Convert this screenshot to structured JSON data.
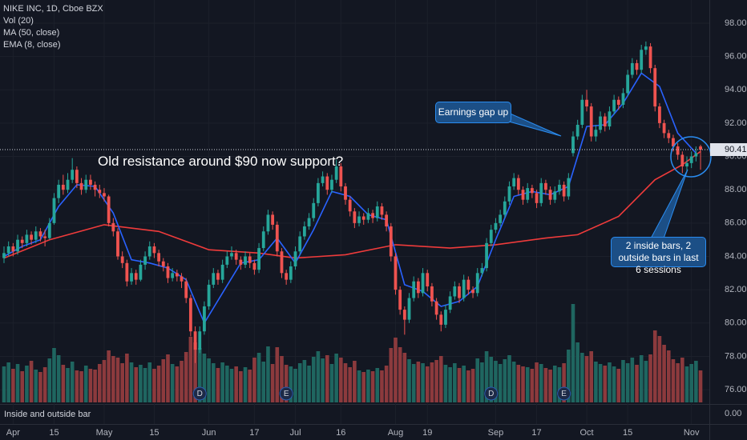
{
  "chart_data": {
    "type": "candlestick",
    "title": "NIKE INC, 1D, Cboe BZX",
    "indicators": [
      "Vol (20)",
      "MA (50, close)",
      "EMA (8, close)"
    ],
    "pane_label": "Inside and outside bar",
    "pane_tick": {
      "value": 0,
      "label": "0.00"
    },
    "last_price": {
      "value": 90.41,
      "label": "90.41"
    },
    "ylim": [
      75.14,
      99.39
    ],
    "yticks": [
      {
        "value": 98,
        "label": "98.00"
      },
      {
        "value": 96,
        "label": "96.00"
      },
      {
        "value": 94,
        "label": "94.00"
      },
      {
        "value": 92,
        "label": "92.00"
      },
      {
        "value": 90,
        "label": "90.00"
      },
      {
        "value": 88,
        "label": "88.00"
      },
      {
        "value": 86,
        "label": "86.00"
      },
      {
        "value": 84,
        "label": "84.00"
      },
      {
        "value": 82,
        "label": "82.00"
      },
      {
        "value": 80,
        "label": "80.00"
      },
      {
        "value": 78,
        "label": "78.00"
      },
      {
        "value": 76,
        "label": "76.00"
      }
    ],
    "xticks": [
      {
        "value": 2,
        "label": "Apr"
      },
      {
        "value": 11,
        "label": "15"
      },
      {
        "value": 22,
        "label": "May"
      },
      {
        "value": 33,
        "label": "15"
      },
      {
        "value": 45,
        "label": "Jun"
      },
      {
        "value": 55,
        "label": "17"
      },
      {
        "value": 64,
        "label": "Jul"
      },
      {
        "value": 74,
        "label": "16"
      },
      {
        "value": 86,
        "label": "Aug"
      },
      {
        "value": 93,
        "label": "19"
      },
      {
        "value": 108,
        "label": "Sep"
      },
      {
        "value": 117,
        "label": "17"
      },
      {
        "value": 128,
        "label": "Oct"
      },
      {
        "value": 137,
        "label": "15"
      },
      {
        "value": 151,
        "label": "Nov"
      }
    ],
    "up_color": "#26a69a",
    "down_color": "#ef5350",
    "vol_up_color": "#1f6660",
    "vol_down_color": "#8c3a3d",
    "candles": [
      [
        83.9,
        84.6,
        83.6,
        84.2
      ],
      [
        84.2,
        84.9,
        84.0,
        84.6
      ],
      [
        84.6,
        84.8,
        84.0,
        84.3
      ],
      [
        84.3,
        85.3,
        84.1,
        85.0
      ],
      [
        85.0,
        85.2,
        84.5,
        84.8
      ],
      [
        84.8,
        85.6,
        84.6,
        85.3
      ],
      [
        85.3,
        85.5,
        84.7,
        85.0
      ],
      [
        85.0,
        85.8,
        84.8,
        85.5
      ],
      [
        85.5,
        85.7,
        84.9,
        85.2
      ],
      [
        85.2,
        85.6,
        84.6,
        85.1
      ],
      [
        85.1,
        86.3,
        85.0,
        86.0
      ],
      [
        86.0,
        87.8,
        85.9,
        87.5
      ],
      [
        87.5,
        88.6,
        87.2,
        88.3
      ],
      [
        88.3,
        88.9,
        87.7,
        88.0
      ],
      [
        88.0,
        89.0,
        87.8,
        88.6
      ],
      [
        88.6,
        89.9,
        88.4,
        89.2
      ],
      [
        89.2,
        89.4,
        88.1,
        88.4
      ],
      [
        88.4,
        88.7,
        87.7,
        88.0
      ],
      [
        88.0,
        88.9,
        87.8,
        88.6
      ],
      [
        88.6,
        88.9,
        88.0,
        88.3
      ],
      [
        88.3,
        88.5,
        87.6,
        88.0
      ],
      [
        88.0,
        88.3,
        87.5,
        87.8
      ],
      [
        87.8,
        88.1,
        87.3,
        87.6
      ],
      [
        87.6,
        87.7,
        85.8,
        86.0
      ],
      [
        86.0,
        86.3,
        85.2,
        85.5
      ],
      [
        85.5,
        85.7,
        83.8,
        84.0
      ],
      [
        84.0,
        84.3,
        83.3,
        83.6
      ],
      [
        83.6,
        83.8,
        82.2,
        82.5
      ],
      [
        82.5,
        83.3,
        82.3,
        83.0
      ],
      [
        83.0,
        83.2,
        82.3,
        82.6
      ],
      [
        82.6,
        83.8,
        82.5,
        83.5
      ],
      [
        83.5,
        84.3,
        83.2,
        84.0
      ],
      [
        84.0,
        84.9,
        83.8,
        84.6
      ],
      [
        84.6,
        84.8,
        83.9,
        84.2
      ],
      [
        84.2,
        84.4,
        83.4,
        83.7
      ],
      [
        83.7,
        83.9,
        83.1,
        83.4
      ],
      [
        83.4,
        83.6,
        82.4,
        82.7
      ],
      [
        82.7,
        83.3,
        82.5,
        83.0
      ],
      [
        83.0,
        83.2,
        82.5,
        82.8
      ],
      [
        82.8,
        83.0,
        82.1,
        82.5
      ],
      [
        82.5,
        82.7,
        81.2,
        81.5
      ],
      [
        81.5,
        81.7,
        79.2,
        79.5
      ],
      [
        79.5,
        79.8,
        77.6,
        78.4
      ],
      [
        78.4,
        79.8,
        78.2,
        79.5
      ],
      [
        79.5,
        81.3,
        79.3,
        81.0
      ],
      [
        81.0,
        82.6,
        80.8,
        82.3
      ],
      [
        82.3,
        83.3,
        82.1,
        83.0
      ],
      [
        83.0,
        83.2,
        82.3,
        82.6
      ],
      [
        82.6,
        83.8,
        82.4,
        83.5
      ],
      [
        83.5,
        84.3,
        83.3,
        84.0
      ],
      [
        84.0,
        84.6,
        83.8,
        84.2
      ],
      [
        84.2,
        84.4,
        83.5,
        83.8
      ],
      [
        83.8,
        84.0,
        83.2,
        83.5
      ],
      [
        83.5,
        84.3,
        83.3,
        84.0
      ],
      [
        84.0,
        84.2,
        83.3,
        83.6
      ],
      [
        83.6,
        83.8,
        82.9,
        83.2
      ],
      [
        83.2,
        84.8,
        83.0,
        84.5
      ],
      [
        84.5,
        85.8,
        84.3,
        85.5
      ],
      [
        85.5,
        86.8,
        85.3,
        86.5
      ],
      [
        86.5,
        86.7,
        85.6,
        85.9
      ],
      [
        85.9,
        86.1,
        84.0,
        84.3
      ],
      [
        84.3,
        84.5,
        82.7,
        83.0
      ],
      [
        83.0,
        83.2,
        82.3,
        82.6
      ],
      [
        82.6,
        83.7,
        82.4,
        83.4
      ],
      [
        83.4,
        84.6,
        83.2,
        84.3
      ],
      [
        84.3,
        85.5,
        84.1,
        85.2
      ],
      [
        85.2,
        86.1,
        85.0,
        85.8
      ],
      [
        85.8,
        86.6,
        85.6,
        86.3
      ],
      [
        86.3,
        87.5,
        86.1,
        87.2
      ],
      [
        87.2,
        88.7,
        87.0,
        88.4
      ],
      [
        88.4,
        89.1,
        88.2,
        88.8
      ],
      [
        88.8,
        89.0,
        87.7,
        88.0
      ],
      [
        88.0,
        88.9,
        87.8,
        88.6
      ],
      [
        88.6,
        89.8,
        88.4,
        89.4
      ],
      [
        89.4,
        89.6,
        87.9,
        88.2
      ],
      [
        88.2,
        88.4,
        87.1,
        87.4
      ],
      [
        87.4,
        87.6,
        86.4,
        86.7
      ],
      [
        86.7,
        86.9,
        85.7,
        86.0
      ],
      [
        86.0,
        86.7,
        85.8,
        86.4
      ],
      [
        86.4,
        86.6,
        85.9,
        86.2
      ],
      [
        86.2,
        86.9,
        86.0,
        86.6
      ],
      [
        86.6,
        86.8,
        86.0,
        86.3
      ],
      [
        86.3,
        87.3,
        86.1,
        87.0
      ],
      [
        87.0,
        87.2,
        86.2,
        86.5
      ],
      [
        86.5,
        86.7,
        85.5,
        85.8
      ],
      [
        85.8,
        86.0,
        83.7,
        84.0
      ],
      [
        84.0,
        84.2,
        81.7,
        82.0
      ],
      [
        82.0,
        82.2,
        80.5,
        80.8
      ],
      [
        80.8,
        81.0,
        79.3,
        80.2
      ],
      [
        80.2,
        81.8,
        80.0,
        81.5
      ],
      [
        81.5,
        82.8,
        81.3,
        82.5
      ],
      [
        82.5,
        82.7,
        81.5,
        81.8
      ],
      [
        81.8,
        83.3,
        81.6,
        83.0
      ],
      [
        83.0,
        83.2,
        81.9,
        82.2
      ],
      [
        82.2,
        82.4,
        81.0,
        81.3
      ],
      [
        81.3,
        81.5,
        80.2,
        80.5
      ],
      [
        80.5,
        80.7,
        79.5,
        79.9
      ],
      [
        79.9,
        81.1,
        79.7,
        80.8
      ],
      [
        80.8,
        81.9,
        80.6,
        81.6
      ],
      [
        81.6,
        82.5,
        81.4,
        82.2
      ],
      [
        82.2,
        82.4,
        81.2,
        81.5
      ],
      [
        81.5,
        82.9,
        81.3,
        82.6
      ],
      [
        82.6,
        82.8,
        81.7,
        82.0
      ],
      [
        82.0,
        82.2,
        81.5,
        81.8
      ],
      [
        81.8,
        83.3,
        81.6,
        83.0
      ],
      [
        83.0,
        83.6,
        82.8,
        83.3
      ],
      [
        83.3,
        85.1,
        83.1,
        84.8
      ],
      [
        84.8,
        85.9,
        84.6,
        85.6
      ],
      [
        85.6,
        86.3,
        85.4,
        86.0
      ],
      [
        86.0,
        86.8,
        85.8,
        86.5
      ],
      [
        86.5,
        87.6,
        86.3,
        87.3
      ],
      [
        87.3,
        88.5,
        87.1,
        88.2
      ],
      [
        88.2,
        89.0,
        88.0,
        88.7
      ],
      [
        88.7,
        88.9,
        87.7,
        88.0
      ],
      [
        88.0,
        88.2,
        87.1,
        87.4
      ],
      [
        87.4,
        88.4,
        87.2,
        88.1
      ],
      [
        88.1,
        88.3,
        87.5,
        87.8
      ],
      [
        87.8,
        88.0,
        86.9,
        87.2
      ],
      [
        87.2,
        88.7,
        87.0,
        88.4
      ],
      [
        88.4,
        88.6,
        87.7,
        88.0
      ],
      [
        88.0,
        88.2,
        87.1,
        87.4
      ],
      [
        87.4,
        88.2,
        87.2,
        87.9
      ],
      [
        87.9,
        88.6,
        87.7,
        88.3
      ],
      [
        88.3,
        88.5,
        87.3,
        87.6
      ],
      [
        87.6,
        89.0,
        87.4,
        88.7
      ],
      [
        90.2,
        91.5,
        90.0,
        91.2
      ],
      [
        91.2,
        92.2,
        91.0,
        91.9
      ],
      [
        91.9,
        93.7,
        91.7,
        93.4
      ],
      [
        93.4,
        94.0,
        92.7,
        93.0
      ],
      [
        93.0,
        93.2,
        90.9,
        91.2
      ],
      [
        91.2,
        91.9,
        90.9,
        91.6
      ],
      [
        91.6,
        92.7,
        91.4,
        92.4
      ],
      [
        92.4,
        92.6,
        91.5,
        91.8
      ],
      [
        91.8,
        93.0,
        91.6,
        92.7
      ],
      [
        92.7,
        93.7,
        92.5,
        93.4
      ],
      [
        93.4,
        93.6,
        92.8,
        93.1
      ],
      [
        93.1,
        94.1,
        92.9,
        93.8
      ],
      [
        93.8,
        95.2,
        93.6,
        94.9
      ],
      [
        94.9,
        95.9,
        94.7,
        95.6
      ],
      [
        95.6,
        95.8,
        94.9,
        95.2
      ],
      [
        95.2,
        96.7,
        95.0,
        96.4
      ],
      [
        96.4,
        96.9,
        96.1,
        96.6
      ],
      [
        96.6,
        96.8,
        95.0,
        95.3
      ],
      [
        95.3,
        95.5,
        92.7,
        93.0
      ],
      [
        93.0,
        93.2,
        91.7,
        92.0
      ],
      [
        92.0,
        92.2,
        91.1,
        91.4
      ],
      [
        91.4,
        91.6,
        90.8,
        91.1
      ],
      [
        91.1,
        91.3,
        90.3,
        90.6
      ],
      [
        90.6,
        90.8,
        89.8,
        90.1
      ],
      [
        90.1,
        90.3,
        89.0,
        89.4
      ],
      [
        89.4,
        90.0,
        89.1,
        89.6
      ],
      [
        89.6,
        90.3,
        89.3,
        90.0
      ],
      [
        90.0,
        90.6,
        89.7,
        90.2
      ],
      [
        90.6,
        90.7,
        89.2,
        90.41
      ]
    ],
    "volume": [
      4.5,
      5.0,
      4.2,
      4.8,
      3.9,
      4.6,
      5.2,
      4.1,
      3.8,
      4.4,
      5.5,
      6.8,
      5.9,
      4.7,
      4.3,
      5.1,
      4.0,
      3.9,
      4.6,
      4.2,
      4.1,
      4.8,
      5.3,
      6.5,
      5.8,
      5.6,
      4.9,
      6.1,
      5.0,
      4.4,
      4.7,
      4.3,
      5.0,
      4.2,
      4.6,
      5.4,
      6.0,
      4.8,
      4.5,
      5.2,
      6.3,
      8.2,
      7.5,
      6.8,
      6.1,
      5.5,
      4.9,
      4.3,
      5.0,
      4.6,
      4.2,
      4.5,
      3.9,
      4.4,
      4.1,
      5.6,
      6.2,
      5.1,
      7.0,
      4.8,
      6.9,
      5.8,
      4.7,
      4.5,
      4.2,
      4.9,
      5.3,
      4.6,
      5.7,
      6.4,
      5.5,
      5.9,
      4.8,
      6.1,
      5.6,
      4.9,
      4.4,
      5.2,
      4.0,
      3.8,
      4.1,
      3.9,
      4.3,
      4.0,
      4.6,
      6.8,
      8.1,
      6.9,
      6.2,
      5.4,
      4.8,
      5.1,
      4.9,
      4.5,
      5.0,
      5.3,
      5.8,
      4.7,
      4.4,
      4.9,
      4.3,
      4.6,
      4.0,
      4.2,
      5.5,
      5.0,
      6.4,
      5.7,
      5.2,
      4.8,
      5.4,
      5.9,
      5.1,
      4.7,
      4.5,
      4.4,
      4.2,
      5.0,
      4.8,
      4.3,
      4.1,
      4.6,
      4.4,
      4.9,
      6.6,
      12.3,
      7.5,
      6.2,
      5.8,
      6.4,
      5.1,
      4.8,
      4.6,
      5.0,
      4.5,
      4.2,
      5.3,
      4.9,
      5.6,
      4.7,
      5.9,
      5.2,
      6.0,
      9.0,
      8.3,
      7.2,
      6.5,
      5.4,
      4.9,
      5.6,
      4.5,
      4.8,
      5.2,
      4.0
    ],
    "ma50": {
      "name": "MA (50, close)",
      "color": "#ef3b3b",
      "x": [
        0,
        10,
        22,
        34,
        45,
        56,
        64,
        75,
        86,
        98,
        108,
        119,
        126,
        135,
        143,
        149,
        153
      ],
      "values": [
        83.9,
        85.0,
        85.9,
        85.5,
        84.4,
        84.2,
        83.9,
        84.1,
        84.7,
        84.5,
        84.7,
        85.1,
        85.3,
        86.4,
        88.6,
        89.5,
        90.3
      ]
    },
    "ema8": {
      "name": "EMA (8, close)",
      "color": "#2962ff",
      "x": [
        0,
        4,
        8,
        12,
        16,
        20,
        24,
        28,
        32,
        36,
        40,
        44,
        48,
        52,
        56,
        60,
        64,
        68,
        72,
        76,
        80,
        84,
        88,
        92,
        96,
        100,
        104,
        108,
        112,
        116,
        120,
        124,
        128,
        132,
        136,
        140,
        144,
        148,
        152
      ],
      "values": [
        84.0,
        84.6,
        85.0,
        87.0,
        88.3,
        88.2,
        86.6,
        83.8,
        83.6,
        83.3,
        82.6,
        80.0,
        81.8,
        83.6,
        83.8,
        85.1,
        83.6,
        85.6,
        87.9,
        87.6,
        86.5,
        86.2,
        82.3,
        81.9,
        81.0,
        81.3,
        82.2,
        85.0,
        87.6,
        87.9,
        87.7,
        88.2,
        91.8,
        91.9,
        93.2,
        95.0,
        94.2,
        91.4,
        90.2
      ]
    },
    "events": [
      {
        "label": "D",
        "x": 43
      },
      {
        "label": "E",
        "x": 62
      },
      {
        "label": "D",
        "x": 107
      },
      {
        "label": "E",
        "x": 123
      }
    ],
    "annotations": [
      "Old resistance around $90 now support?",
      "Earnings gap up",
      "2 inside bars, 2 outside bars in last 6 sessions"
    ]
  }
}
